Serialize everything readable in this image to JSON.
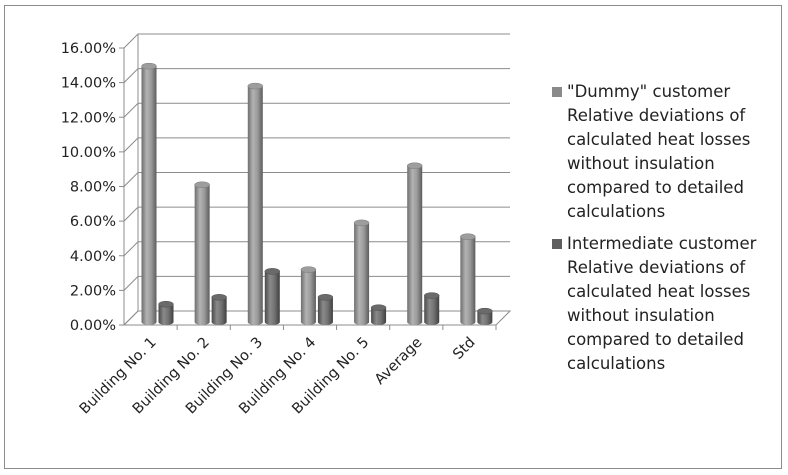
{
  "chart_data": {
    "type": "bar",
    "style": "3d-cylinder",
    "categories": [
      "Building No. 1",
      "Building No. 2",
      "Building No. 3",
      "Building No. 4",
      "Building No. 5",
      "Average",
      "Std"
    ],
    "series": [
      {
        "name": "\"Dummy\" customer Relative deviations of calculated heat losses without insulation compared to detailed calculations",
        "values": [
          0.1495,
          0.081,
          0.138,
          0.032,
          0.059,
          0.092,
          0.051
        ],
        "color": "#8a8a8a"
      },
      {
        "name": "Intermediate customer Relative deviations of calculated heat losses without insulation compared to detailed calculations",
        "values": [
          0.012,
          0.016,
          0.031,
          0.016,
          0.01,
          0.017,
          0.008
        ],
        "color": "#5f5f5f"
      }
    ],
    "y_ticks": [
      "0.00%",
      "2.00%",
      "4.00%",
      "6.00%",
      "8.00%",
      "10.00%",
      "12.00%",
      "14.00%",
      "16.00%"
    ],
    "ylim": [
      0,
      0.16
    ],
    "grid": true,
    "legend_position": "right",
    "title": "",
    "xlabel": "",
    "ylabel": ""
  }
}
